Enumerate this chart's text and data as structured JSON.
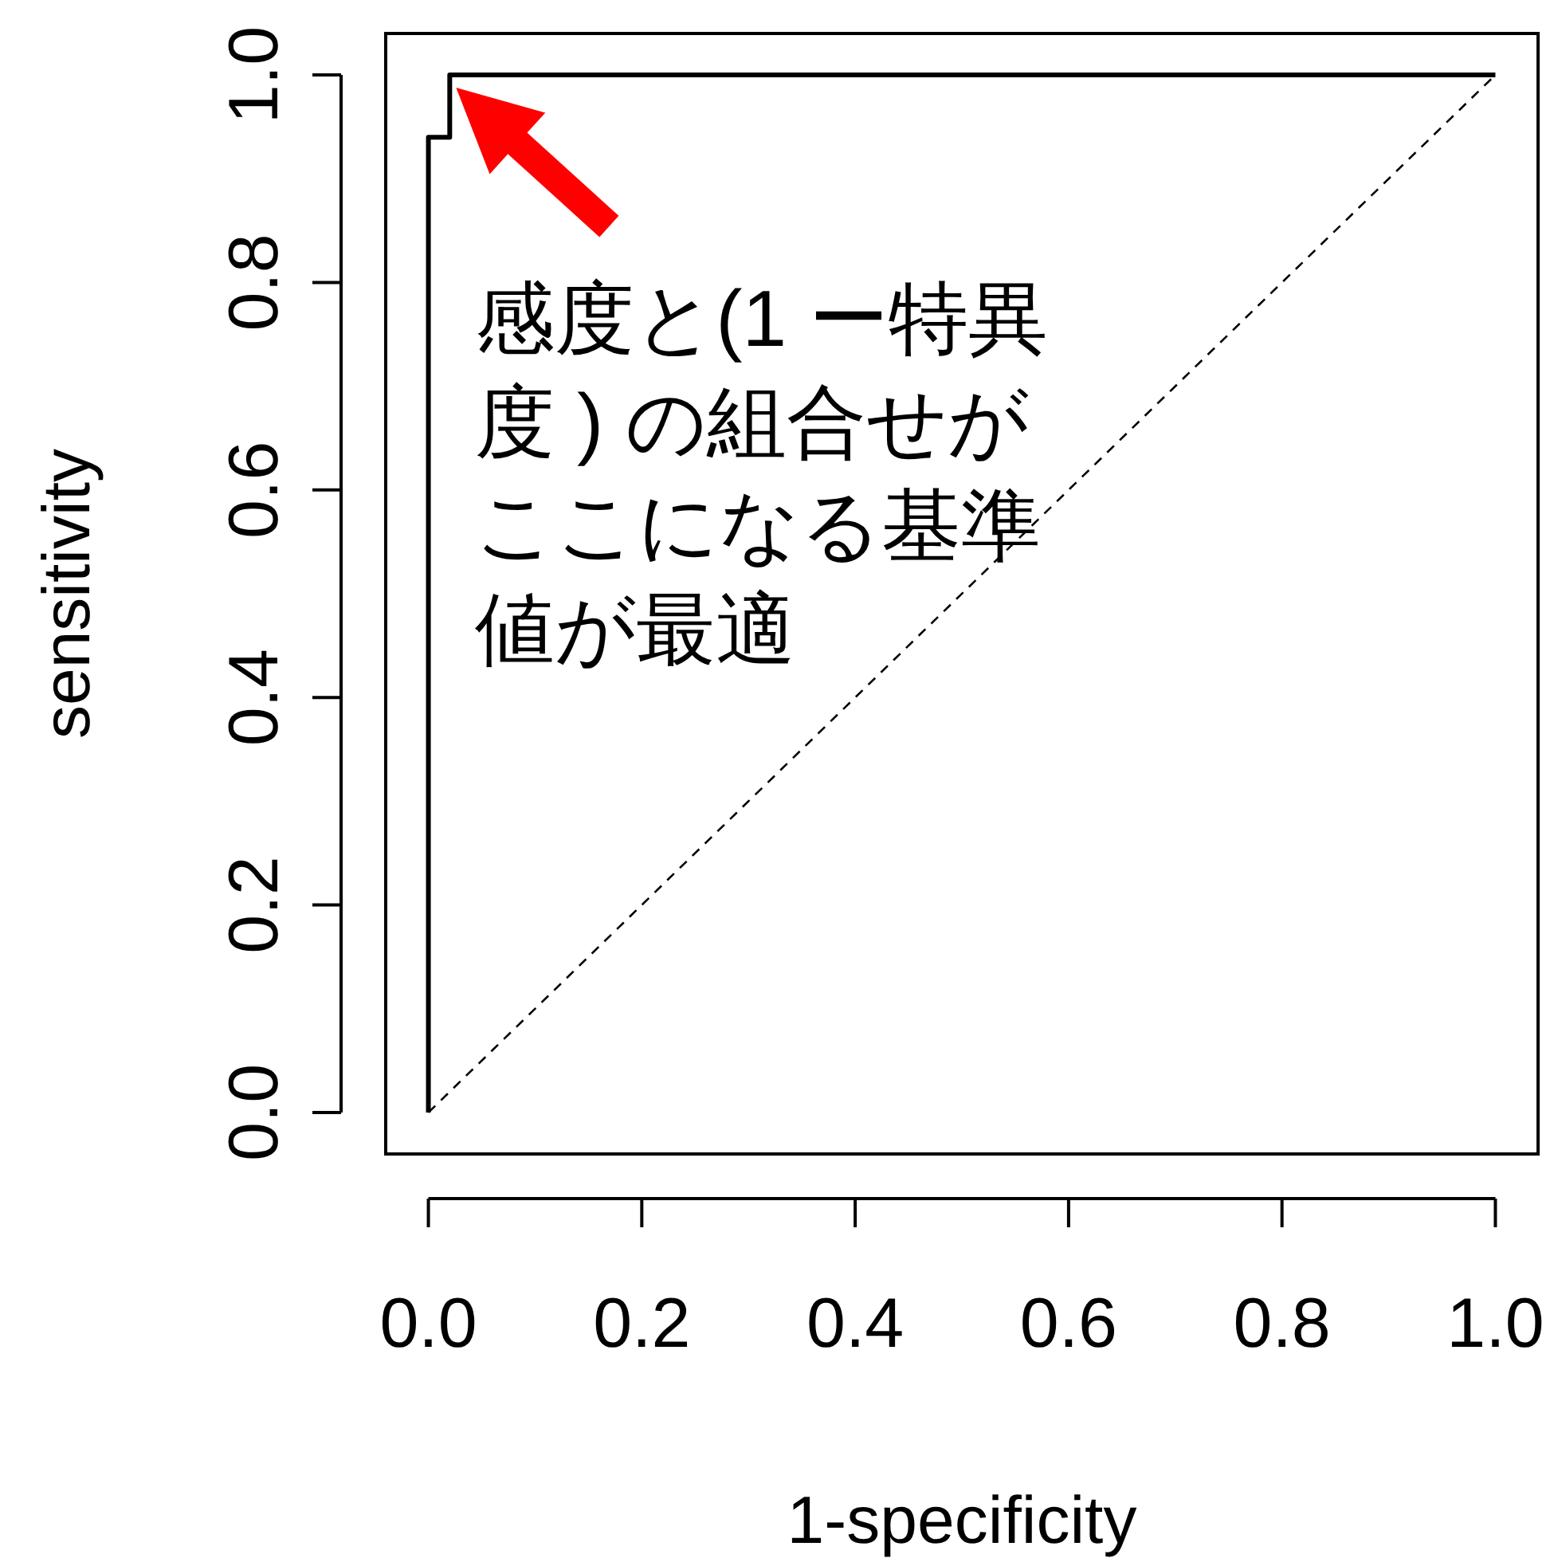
{
  "chart_data": {
    "type": "line",
    "xlabel": "1-specificity",
    "ylabel": "sensitivity",
    "xlim": [
      -0.04,
      1.04
    ],
    "ylim": [
      -0.04,
      1.04
    ],
    "xticks": [
      {
        "value": 0,
        "label": "0.0"
      },
      {
        "value": 0.2,
        "label": "0.2"
      },
      {
        "value": 0.4,
        "label": "0.4"
      },
      {
        "value": 0.6,
        "label": "0.6"
      },
      {
        "value": 0.8,
        "label": "0.8"
      },
      {
        "value": 1,
        "label": "1.0"
      }
    ],
    "yticks": [
      {
        "value": 0,
        "label": "0.0"
      },
      {
        "value": 0.2,
        "label": "0.2"
      },
      {
        "value": 0.4,
        "label": "0.4"
      },
      {
        "value": 0.6,
        "label": "0.6"
      },
      {
        "value": 0.8,
        "label": "0.8"
      },
      {
        "value": 1,
        "label": "1.0"
      }
    ],
    "series": [
      {
        "color": "#000000",
        "line_style": "solid",
        "x": [
          0,
          0,
          0.02,
          0.02,
          1
        ],
        "values": [
          0,
          0.94,
          0.94,
          1,
          1
        ]
      },
      {
        "color": "#000000",
        "line_style": "dashed",
        "x": [
          0,
          1
        ],
        "values": [
          0,
          1
        ]
      }
    ],
    "annotations": [
      {
        "text": "感度と(1 ー特異度 ) の組合せがここになる基準値が最適",
        "x": 0.02,
        "y": 1
      }
    ]
  }
}
